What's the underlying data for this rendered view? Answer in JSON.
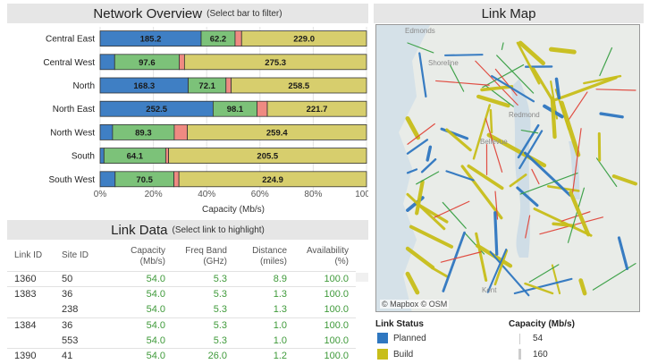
{
  "overview": {
    "title": "Network Overview",
    "subtitle": "(Select bar to filter)"
  },
  "chart_data": {
    "type": "bar",
    "orientation": "horizontal",
    "stacked": true,
    "normalized": true,
    "categories": [
      "Central East",
      "Central West",
      "North",
      "North East",
      "North West",
      "South",
      "South West"
    ],
    "series": [
      {
        "color": "#3f7fc4",
        "values": [
          185.2,
          22,
          168.3,
          252.5,
          18,
          4,
          18
        ],
        "labels": [
          "185.2",
          "",
          "168.3",
          "252.5",
          "",
          "",
          ""
        ]
      },
      {
        "color": "#7cc279",
        "values": [
          62.2,
          97.6,
          72.1,
          98.1,
          89.3,
          64.1,
          70.5
        ],
        "labels": [
          "62.2",
          "97.6",
          "72.1",
          "98.1",
          "89.3",
          "64.1",
          "70.5"
        ]
      },
      {
        "color": "#ef8a82",
        "values": [
          12,
          8,
          10,
          23,
          19,
          3,
          6
        ],
        "labels": [
          "",
          "",
          "",
          "",
          "",
          "",
          ""
        ]
      },
      {
        "color": "#d7ce6d",
        "values": [
          229.0,
          275.3,
          258.5,
          221.7,
          259.4,
          205.5,
          224.9
        ],
        "labels": [
          "229.0",
          "275.3",
          "258.5",
          "221.7",
          "259.4",
          "205.5",
          "224.9"
        ]
      }
    ],
    "xticks": [
      "0%",
      "20%",
      "40%",
      "60%",
      "80%",
      "100%"
    ],
    "xlabel": "Capacity (Mb/s)",
    "xlim": [
      0,
      100
    ]
  },
  "link_data": {
    "title": "Link Data",
    "subtitle": "(Select link to highlight)",
    "headers": {
      "link_id": "Link ID",
      "site_id": "Site ID",
      "capacity": "Capacity",
      "capacity_unit": "(Mb/s)",
      "freq": "Freq Band",
      "freq_unit": "(GHz)",
      "distance": "Distance",
      "distance_unit": "(miles)",
      "availability": "Availability",
      "availability_unit": "(%)"
    },
    "rows": [
      {
        "link_id": "1360",
        "site_id": "50",
        "capacity": "54.0",
        "freq": "5.3",
        "distance": "8.9",
        "availability": "100.0"
      },
      {
        "link_id": "1383",
        "site_id": "36",
        "capacity": "54.0",
        "freq": "5.3",
        "distance": "1.3",
        "availability": "100.0"
      },
      {
        "link_id": "",
        "site_id": "238",
        "capacity": "54.0",
        "freq": "5.3",
        "distance": "1.3",
        "availability": "100.0"
      },
      {
        "link_id": "1384",
        "site_id": "36",
        "capacity": "54.0",
        "freq": "5.3",
        "distance": "1.0",
        "availability": "100.0"
      },
      {
        "link_id": "",
        "site_id": "553",
        "capacity": "54.0",
        "freq": "5.3",
        "distance": "1.0",
        "availability": "100.0"
      },
      {
        "link_id": "1390",
        "site_id": "41",
        "capacity": "54.0",
        "freq": "26.0",
        "distance": "1.2",
        "availability": "100.0"
      }
    ]
  },
  "link_map": {
    "title": "Link Map",
    "attribution": "© Mapbox © OSM",
    "places": [
      "Edmonds",
      "Shoreline",
      "Redmond",
      "Bellevue",
      "Kent"
    ]
  },
  "legend_status": {
    "title": "Link Status",
    "items": [
      {
        "label": "Planned",
        "color": "#2f77c0"
      },
      {
        "label": "Build",
        "color": "#c8be1a"
      }
    ]
  },
  "legend_capacity": {
    "title": "Capacity (Mb/s)",
    "items": [
      "54",
      "160"
    ]
  },
  "colors": {
    "accent_green": "#3f9a3a",
    "header_bg": "#e6e6e6"
  }
}
